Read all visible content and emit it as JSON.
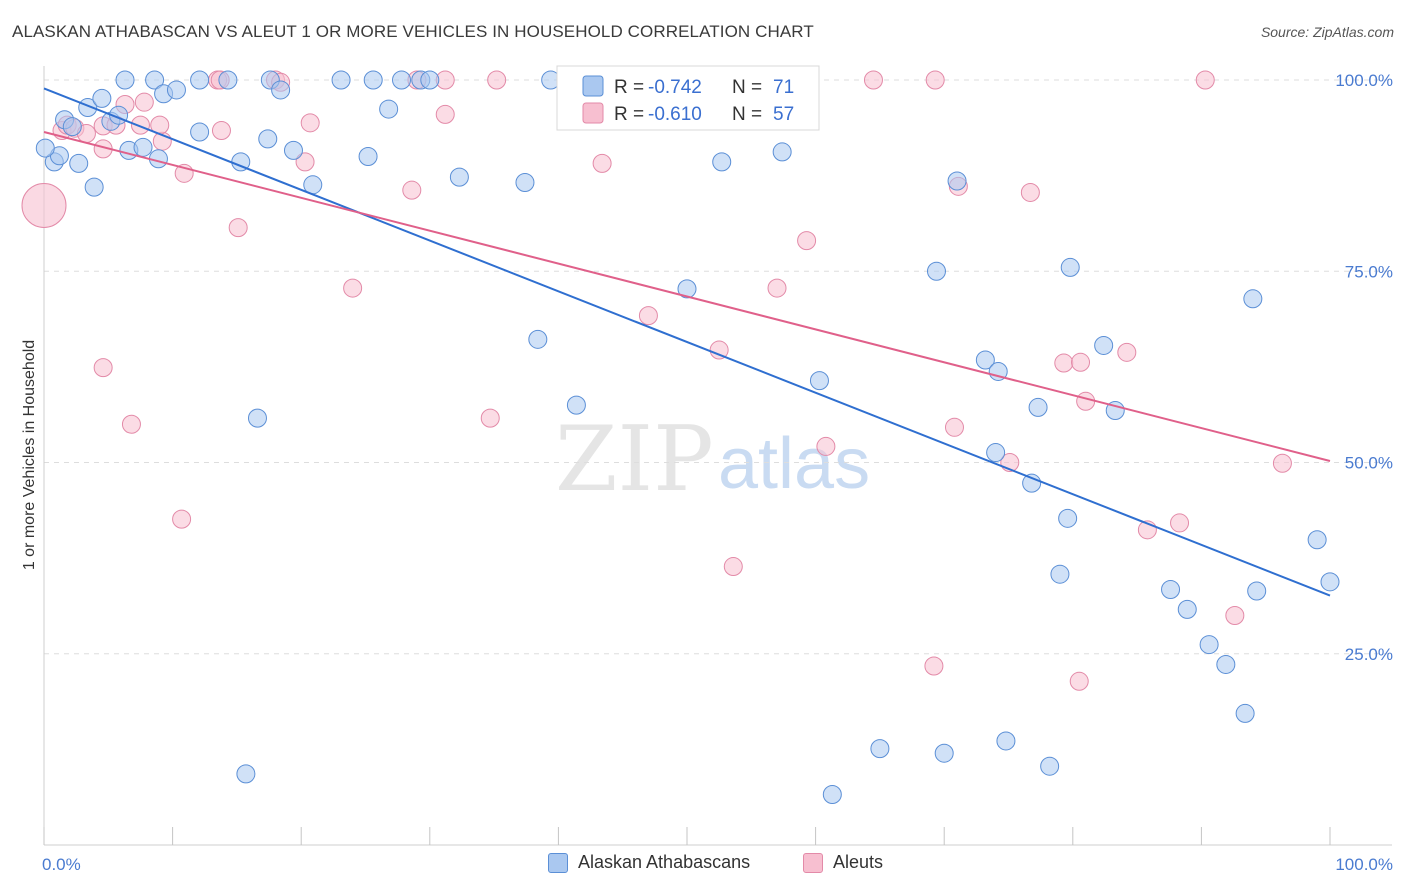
{
  "title": "ALASKAN ATHABASCAN VS ALEUT 1 OR MORE VEHICLES IN HOUSEHOLD CORRELATION CHART",
  "source": "Source: ZipAtlas.com",
  "watermark": {
    "zip": "ZIP",
    "atlas": "atlas"
  },
  "legend_top": [
    {
      "r_label": "R =",
      "r_value": "-0.742",
      "n_label": "N =",
      "n_value": "71"
    },
    {
      "r_label": "R =",
      "r_value": "-0.610",
      "n_label": "N =",
      "n_value": "57"
    }
  ],
  "legend_bottom": [
    "Alaskan Athabascans",
    "Aleuts"
  ],
  "colors": {
    "blue_fill": "#aac8f0",
    "blue_stroke": "#5b8fd6",
    "blue_line": "#2f6fd0",
    "pink_fill": "#f7bfd0",
    "pink_stroke": "#e38aa8",
    "pink_line": "#e0608a",
    "grid": "#dddddd",
    "tick_text": "#4a7bd0"
  },
  "chart_data": {
    "type": "scatter",
    "title": "ALASKAN ATHABASCAN VS ALEUT 1 OR MORE VEHICLES IN HOUSEHOLD CORRELATION CHART",
    "xlabel": "",
    "ylabel": "1 or more Vehicles in Household",
    "xlim": [
      0,
      100
    ],
    "ylim": [
      0,
      104
    ],
    "x_tick_labels": [
      "0.0%",
      "100.0%"
    ],
    "y_ticks": [
      25,
      50,
      75,
      100
    ],
    "y_tick_labels": [
      "25.0%",
      "50.0%",
      "75.0%",
      "100.0%"
    ],
    "grid": true,
    "series": [
      {
        "name": "Alaskan Athabascans",
        "R": -0.742,
        "N": 71,
        "trend": {
          "x": [
            0,
            100
          ],
          "y": [
            98.9,
            32.6
          ]
        },
        "points": [
          [
            0.8,
            89.3
          ],
          [
            1.2,
            90.1
          ],
          [
            1.6,
            94.8
          ],
          [
            2.2,
            93.9
          ],
          [
            2.7,
            89.1
          ],
          [
            3.4,
            96.4
          ],
          [
            3.9,
            86.0
          ],
          [
            4.5,
            97.6
          ],
          [
            5.2,
            94.6
          ],
          [
            5.8,
            95.4
          ],
          [
            6.3,
            100.0
          ],
          [
            6.6,
            90.8
          ],
          [
            7.7,
            91.2
          ],
          [
            8.6,
            100.0
          ],
          [
            8.9,
            89.7
          ],
          [
            9.3,
            98.2
          ],
          [
            10.3,
            98.7
          ],
          [
            12.1,
            100.0
          ],
          [
            12.1,
            93.2
          ],
          [
            14.3,
            100.0
          ],
          [
            15.3,
            89.3
          ],
          [
            16.6,
            55.8
          ],
          [
            17.4,
            92.3
          ],
          [
            17.6,
            100.0
          ],
          [
            18.4,
            98.7
          ],
          [
            19.4,
            90.8
          ],
          [
            20.9,
            86.3
          ],
          [
            23.1,
            100.0
          ],
          [
            25.2,
            90.0
          ],
          [
            25.6,
            100.0
          ],
          [
            26.8,
            96.2
          ],
          [
            27.8,
            100.0
          ],
          [
            29.3,
            100.0
          ],
          [
            32.3,
            87.3
          ],
          [
            37.4,
            86.6
          ],
          [
            38.4,
            66.1
          ],
          [
            39.4,
            100.0
          ],
          [
            41.4,
            57.5
          ],
          [
            50.0,
            72.7
          ],
          [
            52.7,
            89.3
          ],
          [
            57.4,
            90.6
          ],
          [
            60.3,
            60.7
          ],
          [
            61.3,
            6.6
          ],
          [
            65.0,
            12.6
          ],
          [
            69.4,
            75.0
          ],
          [
            70.0,
            12.0
          ],
          [
            71.0,
            86.8
          ],
          [
            73.2,
            63.4
          ],
          [
            74.2,
            61.9
          ],
          [
            74.0,
            51.3
          ],
          [
            74.8,
            13.6
          ],
          [
            76.8,
            47.3
          ],
          [
            77.3,
            57.2
          ],
          [
            78.2,
            10.3
          ],
          [
            79.0,
            35.4
          ],
          [
            79.6,
            42.7
          ],
          [
            79.8,
            75.5
          ],
          [
            82.4,
            65.3
          ],
          [
            83.3,
            56.8
          ],
          [
            87.6,
            33.4
          ],
          [
            88.9,
            30.8
          ],
          [
            90.6,
            26.2
          ],
          [
            91.9,
            23.6
          ],
          [
            93.4,
            17.2
          ],
          [
            94.0,
            71.4
          ],
          [
            94.3,
            33.2
          ],
          [
            99.0,
            39.9
          ],
          [
            100.0,
            34.4
          ],
          [
            15.7,
            9.3
          ],
          [
            0.1,
            91.1
          ],
          [
            30.0,
            100.0
          ]
        ]
      },
      {
        "name": "Aleuts",
        "R": -0.61,
        "N": 57,
        "trend": {
          "x": [
            0,
            100
          ],
          "y": [
            93.2,
            50.2
          ]
        },
        "points": [
          [
            0.0,
            83.6
          ],
          [
            1.4,
            93.4
          ],
          [
            1.8,
            94.1
          ],
          [
            2.4,
            93.7
          ],
          [
            3.3,
            93.0
          ],
          [
            4.6,
            94.0
          ],
          [
            4.6,
            91.0
          ],
          [
            4.6,
            62.4
          ],
          [
            5.6,
            94.1
          ],
          [
            6.3,
            96.8
          ],
          [
            6.8,
            55.0
          ],
          [
            7.5,
            94.1
          ],
          [
            7.8,
            97.1
          ],
          [
            9.2,
            92.0
          ],
          [
            9.0,
            94.1
          ],
          [
            10.7,
            42.6
          ],
          [
            10.9,
            87.8
          ],
          [
            13.5,
            100.0
          ],
          [
            13.8,
            93.4
          ],
          [
            13.7,
            100.0
          ],
          [
            15.1,
            80.7
          ],
          [
            18.0,
            100.0
          ],
          [
            18.4,
            99.7
          ],
          [
            20.3,
            89.3
          ],
          [
            20.7,
            94.4
          ],
          [
            24.0,
            72.8
          ],
          [
            28.6,
            85.6
          ],
          [
            29.0,
            100.0
          ],
          [
            31.2,
            95.5
          ],
          [
            31.2,
            100.0
          ],
          [
            34.7,
            55.8
          ],
          [
            35.2,
            100.0
          ],
          [
            41.2,
            100.0
          ],
          [
            43.4,
            89.1
          ],
          [
            47.0,
            69.2
          ],
          [
            52.5,
            64.7
          ],
          [
            53.6,
            36.4
          ],
          [
            57.0,
            72.8
          ],
          [
            59.3,
            79.0
          ],
          [
            60.8,
            52.1
          ],
          [
            64.5,
            100.0
          ],
          [
            69.2,
            23.4
          ],
          [
            69.3,
            100.0
          ],
          [
            70.8,
            54.6
          ],
          [
            71.1,
            86.1
          ],
          [
            76.7,
            85.3
          ],
          [
            75.1,
            50.0
          ],
          [
            79.3,
            63.0
          ],
          [
            80.5,
            21.4
          ],
          [
            80.6,
            63.1
          ],
          [
            81.0,
            58.0
          ],
          [
            84.2,
            64.4
          ],
          [
            85.8,
            41.2
          ],
          [
            88.3,
            42.1
          ],
          [
            90.3,
            100.0
          ],
          [
            92.6,
            30.0
          ],
          [
            96.3,
            49.9
          ]
        ]
      }
    ]
  }
}
